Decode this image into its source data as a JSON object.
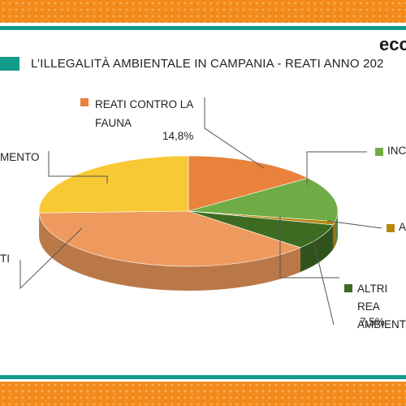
{
  "brand": {
    "logo_text": "ecc"
  },
  "header": {
    "title": "L’ILLEGALITÀ AMBIENTALE IN CAMPANIA - REATI ANNO 202"
  },
  "colors": {
    "accent_orange": "#f28a1c",
    "accent_teal": "#139b8a"
  },
  "chart_data": {
    "type": "pie",
    "title": "L’ILLEGALITÀ AMBIENTALE IN CAMPANIA - REATI ANNO 202",
    "slices": [
      {
        "label": "REATI CONTRO LA FAUNA",
        "value_label": "14,8%",
        "value": 14.8,
        "color": "#e8823c"
      },
      {
        "label": "INC",
        "value_label": "",
        "value": 13.2,
        "color": "#6fac45"
      },
      {
        "label": "A",
        "value_label": "",
        "value": 1.0,
        "color": "#b7860b"
      },
      {
        "label": "ALTRI REA AMBIENT",
        "value_label": "7,5%",
        "value": 7.5,
        "color": "#3d6b22"
      },
      {
        "label": "TI",
        "value_label": "",
        "value": 38.0,
        "color": "#ee9a5e"
      },
      {
        "label": "MENTO",
        "value_label": "",
        "value": 25.5,
        "color": "#f8c934"
      }
    ]
  }
}
